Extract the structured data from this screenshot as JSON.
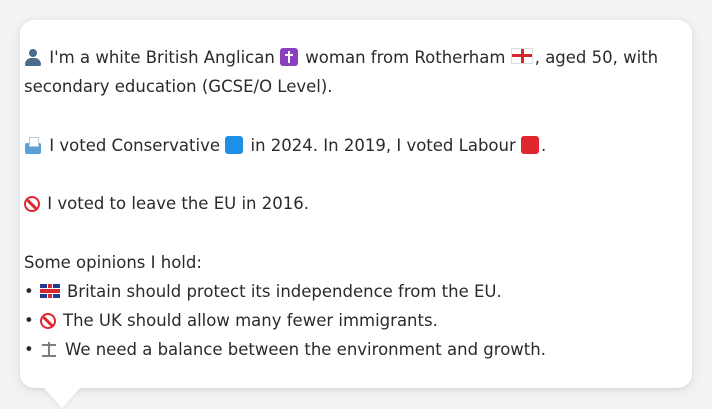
{
  "profile": {
    "identity_text": "I'm a white British Anglican",
    "identity_text_2": "woman from Rotherham",
    "identity_text_3": ", aged 50, with",
    "identity_text_4": "secondary education (GCSE/O Level).",
    "vote_text_1": "I voted Conservative",
    "vote_text_2": "in 2024. In 2019, I voted Labour",
    "vote_text_3": ".",
    "eu_text": "I voted to leave the EU in 2016.",
    "opinions_heading": "Some opinions I hold:",
    "opinions": [
      "Britain should protect its independence from the EU.",
      "The UK should allow many fewer immigrants.",
      "We need a balance between the environment and growth."
    ],
    "bullet": "•"
  },
  "icons": {
    "person": "person-icon",
    "religion": "latin-cross-icon",
    "england_flag": "england-flag-icon",
    "ballot_box": "ballot-box-icon",
    "conservative_square": "blue-square-icon",
    "labour_square": "red-square-icon",
    "no_entry": "no-entry-icon",
    "uk_flag": "uk-flag-icon",
    "scales": "balance-scale-icon"
  },
  "colors": {
    "conservative": "#1e8fe6",
    "labour": "#e0262e",
    "card_bg": "#ffffff",
    "page_bg": "#f2f3f5"
  }
}
